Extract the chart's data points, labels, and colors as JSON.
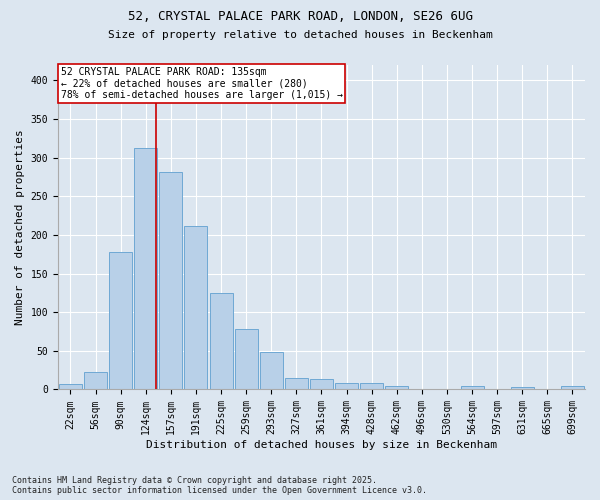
{
  "title_line1": "52, CRYSTAL PALACE PARK ROAD, LONDON, SE26 6UG",
  "title_line2": "Size of property relative to detached houses in Beckenham",
  "xlabel": "Distribution of detached houses by size in Beckenham",
  "ylabel": "Number of detached properties",
  "footnote_line1": "Contains HM Land Registry data © Crown copyright and database right 2025.",
  "footnote_line2": "Contains public sector information licensed under the Open Government Licence v3.0.",
  "bin_labels": [
    "22sqm",
    "56sqm",
    "90sqm",
    "124sqm",
    "157sqm",
    "191sqm",
    "225sqm",
    "259sqm",
    "293sqm",
    "327sqm",
    "361sqm",
    "394sqm",
    "428sqm",
    "462sqm",
    "496sqm",
    "530sqm",
    "564sqm",
    "597sqm",
    "631sqm",
    "665sqm",
    "699sqm"
  ],
  "bar_values": [
    7,
    22,
    178,
    312,
    281,
    212,
    125,
    78,
    49,
    15,
    14,
    9,
    8,
    5,
    1,
    0,
    4,
    0,
    3,
    0,
    4
  ],
  "bar_color": "#b8d0e8",
  "bar_edge_color": "#6fa8d4",
  "background_color": "#dce6f0",
  "fig_background_color": "#dce6f0",
  "grid_color": "#ffffff",
  "vline_x_index": 3.4,
  "vline_color": "#cc0000",
  "annotation_title": "52 CRYSTAL PALACE PARK ROAD: 135sqm",
  "annotation_line2": "← 22% of detached houses are smaller (280)",
  "annotation_line3": "78% of semi-detached houses are larger (1,015) →",
  "annotation_box_edgecolor": "#cc0000",
  "annotation_box_facecolor": "#ffffff",
  "ylim": [
    0,
    420
  ],
  "yticks": [
    0,
    50,
    100,
    150,
    200,
    250,
    300,
    350,
    400
  ],
  "title_fontsize": 9,
  "subtitle_fontsize": 8,
  "xlabel_fontsize": 8,
  "ylabel_fontsize": 8,
  "tick_fontsize": 7,
  "annotation_fontsize": 7,
  "footnote_fontsize": 6
}
